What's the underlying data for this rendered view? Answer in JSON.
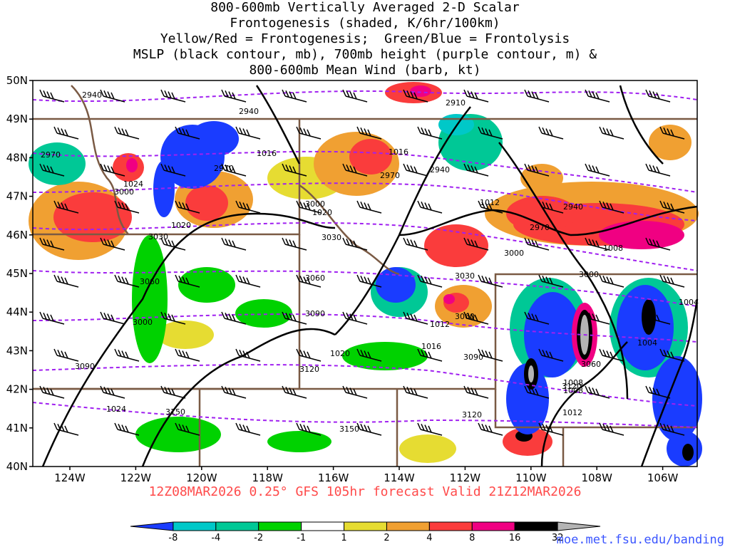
{
  "title_lines": [
    "800-600mb Vertically Averaged 2-D Scalar",
    "Frontogenesis (shaded, K/6hr/100km)",
    "Yellow/Red = Frontogenesis;  Green/Blue = Frontolysis",
    "MSLP (black contour, mb), 700mb height (purple contour, m) &",
    "800-600mb Mean Wind (barb, kt)"
  ],
  "footer": "12Z08MAR2026 0.25° GFS 105hr forecast Valid 21Z12MAR2026",
  "credit": "moe.met.fsu.edu/banding",
  "map": {
    "lat_labels": [
      "50N",
      "49N",
      "48N",
      "47N",
      "46N",
      "45N",
      "44N",
      "43N",
      "42N",
      "41N",
      "40N"
    ],
    "lon_labels": [
      "124W",
      "122W",
      "120W",
      "118W",
      "116W",
      "114W",
      "112W",
      "110W",
      "108W",
      "106W"
    ],
    "height_labels": [
      "2940",
      "2940",
      "2910",
      "2970",
      "2970",
      "2970",
      "2940",
      "3000",
      "3000",
      "2970",
      "2940",
      "3000",
      "3030",
      "3030",
      "3000",
      "3060",
      "3060",
      "3030",
      "3000",
      "3090",
      "3060",
      "3090",
      "3120",
      "3060",
      "3090",
      "3120",
      "3150",
      "3150",
      "3120"
    ],
    "pressure_labels": [
      "1016",
      "1016",
      "1024",
      "1020",
      "1020",
      "1012",
      "1008",
      "1012",
      "1016",
      "1020",
      "1008",
      "1008",
      "1004",
      "1004",
      "1024",
      "1012"
    ]
  },
  "colorbar": {
    "labels": [
      "-8",
      "-4",
      "-2",
      "-1",
      "1",
      "2",
      "4",
      "8",
      "16",
      "32"
    ],
    "colors": [
      "#1a3cff",
      "#00c8c8",
      "#00c896",
      "#00d200",
      "#ffffff",
      "#e6dc32",
      "#f0a032",
      "#fa3c3c",
      "#f00082",
      "#000000",
      "#b4b4b4"
    ]
  },
  "colors": {
    "border": "#7a5a44",
    "height_contour": "#a020f0",
    "mslp_contour": "#000000",
    "footer": "#ff4a4a",
    "credit": "#3a55ff"
  }
}
